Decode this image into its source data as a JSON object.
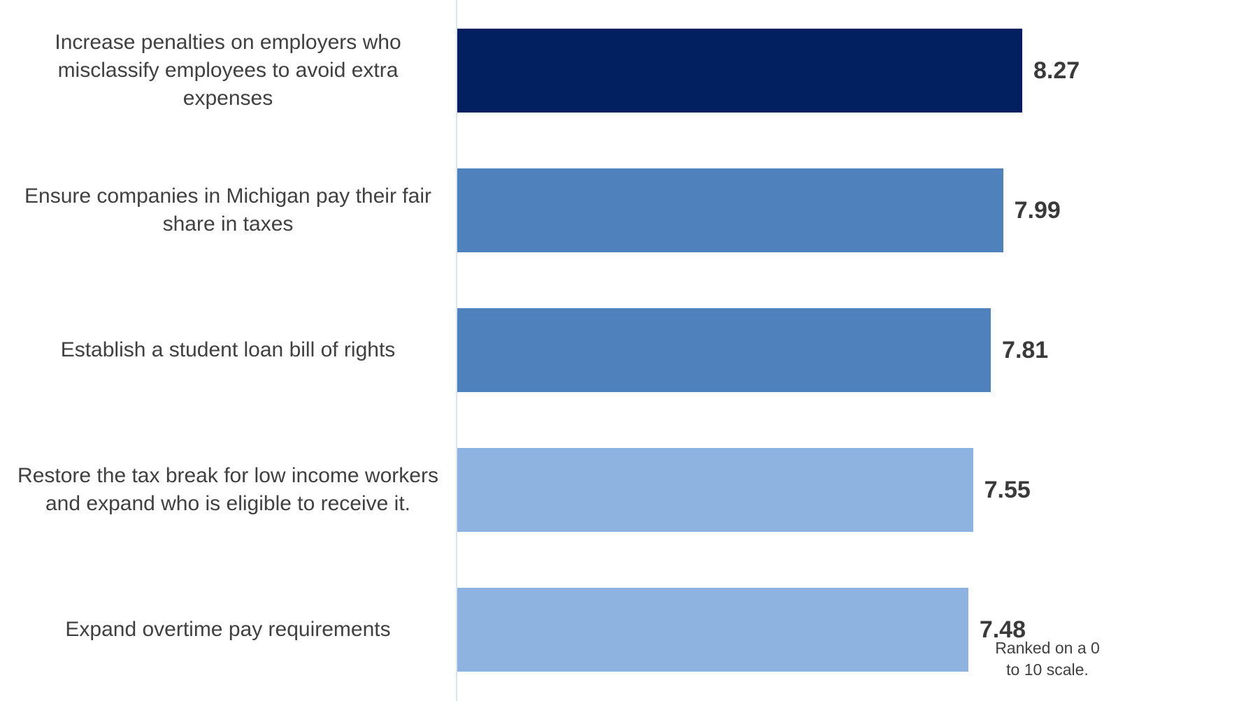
{
  "chart_data": {
    "type": "bar",
    "orientation": "horizontal",
    "categories": [
      "Increase penalties on employers who\nmisclassify employees to avoid extra\nexpenses",
      "Ensure companies in Michigan pay their fair\nshare in taxes",
      "Establish a student loan bill of rights",
      "Restore the tax break for low income workers\nand expand who is eligible to receive it.",
      "Expand overtime pay requirements"
    ],
    "values": [
      8.27,
      7.99,
      7.81,
      7.55,
      7.48
    ],
    "value_labels": [
      "8.27",
      "7.99",
      "7.81",
      "7.55",
      "7.48"
    ],
    "bar_colors": [
      "#021f5f",
      "#4f81bd",
      "#4f81bd",
      "#8fb3e1",
      "#8fb3e1"
    ],
    "xlim": [
      0,
      8.27
    ],
    "grid": false,
    "legend": "none",
    "title": "",
    "xlabel": "",
    "ylabel": ""
  },
  "annotations": {
    "scale_note": "Ranked on a 0\nto 10 scale."
  }
}
